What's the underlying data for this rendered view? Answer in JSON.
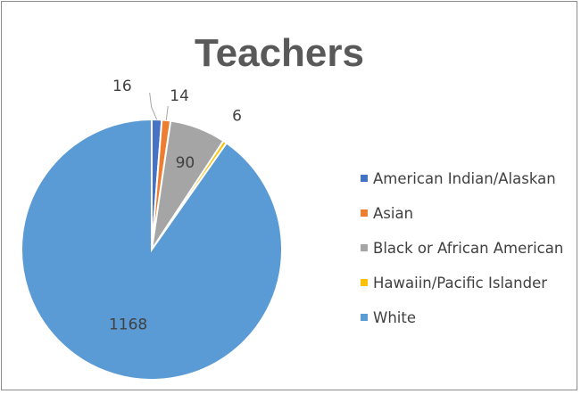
{
  "chart_data": {
    "type": "pie",
    "title": "Teachers",
    "categories": [
      "American Indian/Alaskan",
      "Asian",
      "Black or African American",
      "Hawaiin/Pacific Islander",
      "White"
    ],
    "values": [
      16,
      14,
      90,
      6,
      1168
    ],
    "colors": [
      "#4472c4",
      "#ed7d31",
      "#a5a5a5",
      "#ffc000",
      "#5b9bd5"
    ],
    "data_labels": [
      "16",
      "14",
      "90",
      "6",
      "1168"
    ],
    "legend_position": "right"
  }
}
